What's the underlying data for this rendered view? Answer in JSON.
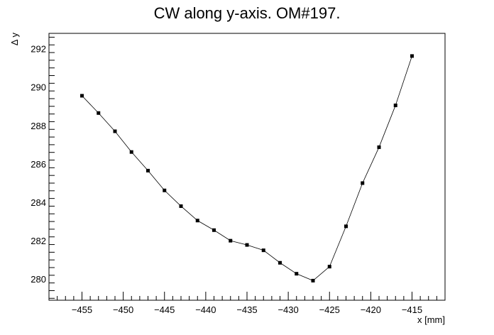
{
  "chart_data": {
    "type": "line",
    "title": "CW along y-axis. OM#197.",
    "xlabel": "x [mm]",
    "ylabel": "Δ y",
    "xlim": [
      -459,
      -411
    ],
    "ylim": [
      278.9,
      292.8
    ],
    "x_ticks": [
      -455,
      -450,
      -445,
      -440,
      -435,
      -430,
      -425,
      -420,
      -415
    ],
    "x_tick_labels": [
      "−455",
      "−450",
      "−445",
      "−440",
      "−435",
      "−430",
      "−425",
      "−420",
      "−415"
    ],
    "y_ticks": [
      280,
      282,
      284,
      286,
      288,
      290,
      292
    ],
    "y_tick_labels": [
      "280",
      "282",
      "284",
      "286",
      "288",
      "290",
      "292"
    ],
    "grid": false,
    "series": [
      {
        "name": "CW",
        "x": [
          -455,
          -453,
          -451,
          -449,
          -447,
          -445,
          -443,
          -441,
          -439,
          -437,
          -435,
          -433,
          -431,
          -429,
          -427,
          -425,
          -423,
          -421,
          -419,
          -417,
          -415
        ],
        "y": [
          289.55,
          288.65,
          287.7,
          286.62,
          285.65,
          284.62,
          283.8,
          283.05,
          282.55,
          282.0,
          281.78,
          281.5,
          280.85,
          280.28,
          279.92,
          280.65,
          282.75,
          285.0,
          286.87,
          289.05,
          291.62
        ]
      }
    ]
  }
}
